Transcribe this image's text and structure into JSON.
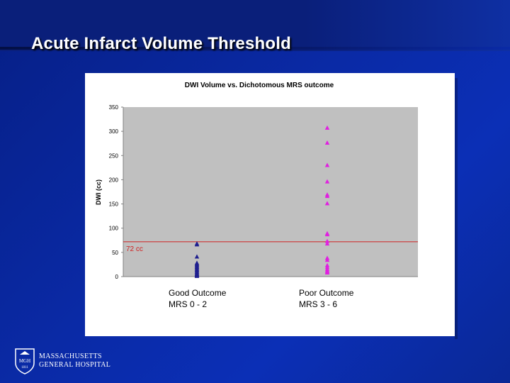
{
  "slide": {
    "title": "Acute Infarct Volume Threshold",
    "organization": [
      "MASSACHUSETTS",
      "GENERAL HOSPITAL"
    ],
    "logo_text": "MGH",
    "logo_year": "1811"
  },
  "chart_data": {
    "type": "scatter",
    "title": "DWI Volume vs. Dichotomous MRS outcome",
    "ylabel": "DWI (cc)",
    "xlabel": "",
    "ylim": [
      0,
      350
    ],
    "yticks": [
      0,
      50,
      100,
      150,
      200,
      250,
      300,
      350
    ],
    "categories": [
      {
        "line1": "Good Outcome",
        "line2": "MRS 0 - 2"
      },
      {
        "line1": "Poor Outcome",
        "line2": "MRS 3 - 6"
      }
    ],
    "series": [
      {
        "category_index": 0,
        "color": "#1f1f8f",
        "marker": "triangle",
        "values": [
          68,
          66,
          41,
          28,
          26,
          24,
          22,
          20,
          18,
          16,
          14,
          12,
          10,
          8,
          6,
          5,
          4,
          3,
          2,
          1
        ]
      },
      {
        "category_index": 1,
        "color": "#e020e0",
        "marker": "triangle",
        "values": [
          307,
          276,
          230,
          196,
          169,
          166,
          151,
          89,
          87,
          73,
          68,
          38,
          34,
          23,
          19,
          15,
          12,
          10,
          8
        ]
      }
    ],
    "threshold": {
      "value": 72,
      "label": "72 cc",
      "color": "#d02020"
    },
    "grid": false,
    "plot_background": "#c0c0c0",
    "legend": "none"
  }
}
